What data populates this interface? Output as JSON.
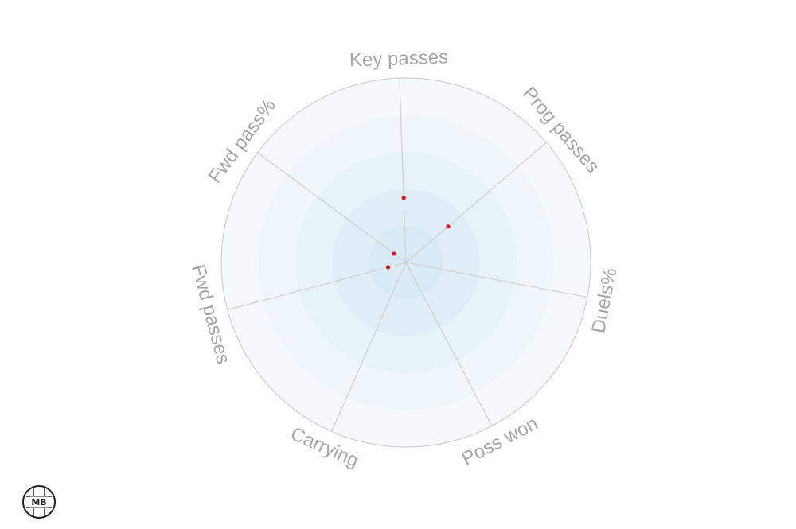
{
  "chart_data": {
    "type": "radar",
    "title": "",
    "axes": [
      "Key passes",
      "Prog passes",
      "Duels%",
      "Poss won",
      "Carrying",
      "Fwd passes",
      "Fwd pass%"
    ],
    "series": [
      {
        "values": [
          0.35,
          0.3,
          0.0,
          0.0,
          0.0,
          0.1,
          0.08
        ]
      }
    ],
    "range": [
      0,
      1
    ],
    "rings": 5,
    "ring_colors": [
      "#d9eaf6",
      "#e1eef8",
      "#e8f2f9",
      "#eff6fb",
      "#f5f9fd"
    ],
    "point_color": "#e0141e",
    "grid_color": "#d0d0d0",
    "label_color": "#a6a6a6"
  },
  "logo": {
    "text": "MB"
  }
}
